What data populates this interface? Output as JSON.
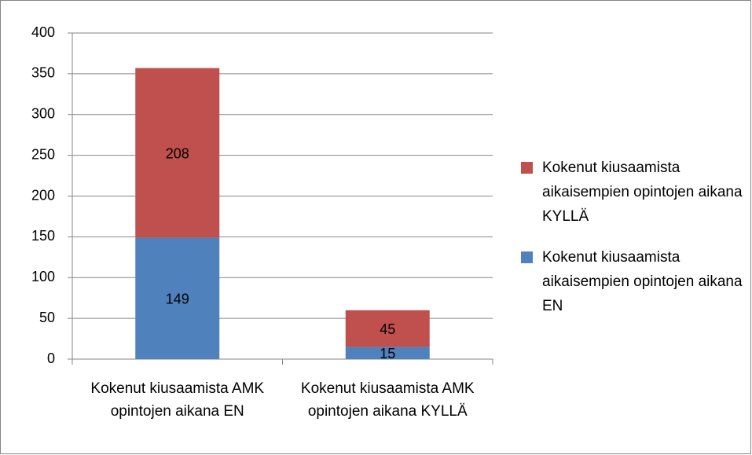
{
  "chart_data": {
    "type": "stacked_bar",
    "categories": [
      "Kokenut kiusaamista AMK opintojen aikana EN",
      "Kokenut kiusaamista AMK opintojen aikana KYLLÄ"
    ],
    "series": [
      {
        "name": "Kokenut kiusaamista aikaisempien opintojen aikana EN",
        "color": "#4f81bd",
        "values": [
          149,
          15
        ]
      },
      {
        "name": "Kokenut kiusaamista aikaisempien opintojen aikana KYLLÄ",
        "color": "#c0504d",
        "values": [
          208,
          45
        ]
      }
    ],
    "ylim": [
      0,
      400
    ],
    "yticks": [
      0,
      50,
      100,
      150,
      200,
      250,
      300,
      350,
      400
    ],
    "grid": true,
    "legend": "right"
  }
}
